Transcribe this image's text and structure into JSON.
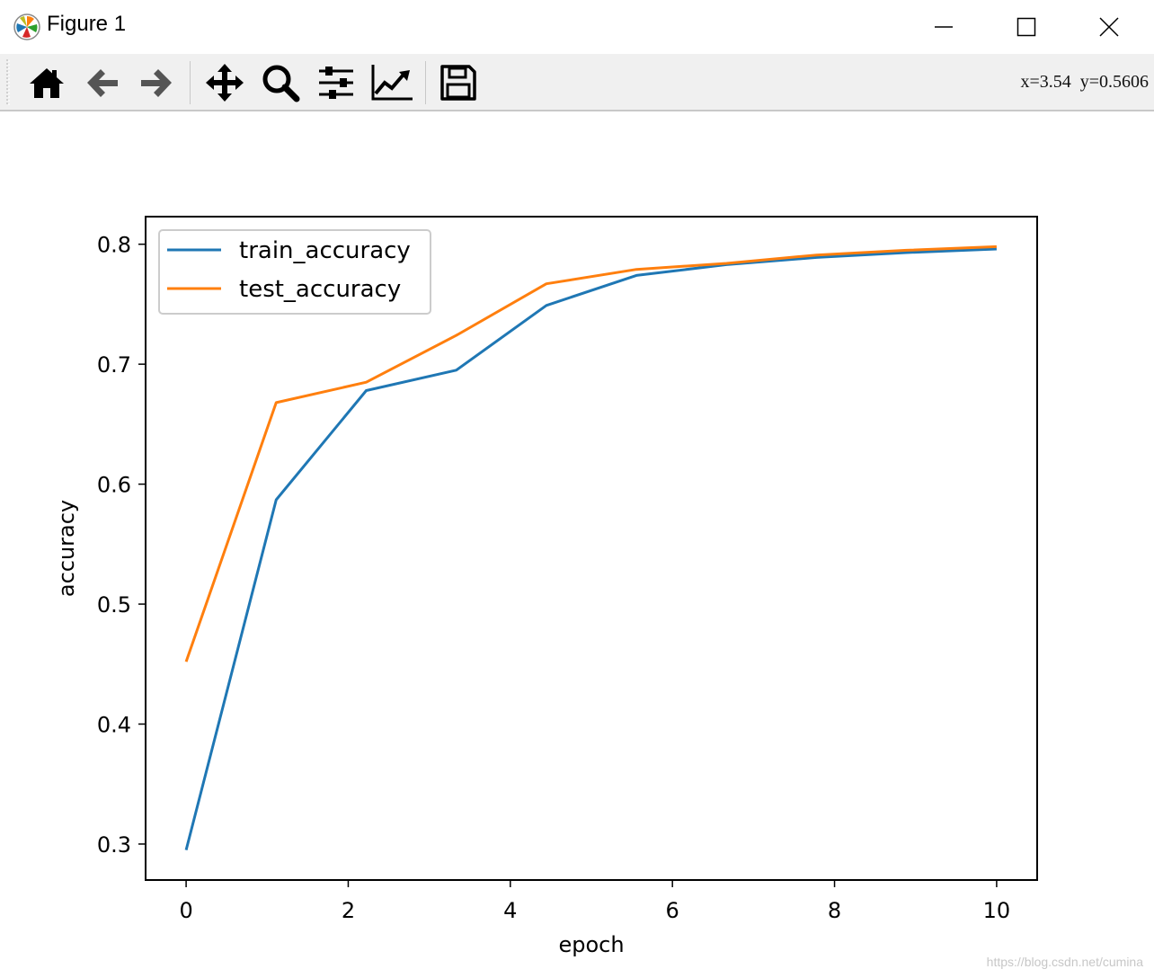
{
  "window": {
    "title": "Figure 1",
    "minimize_icon": "minimize-icon",
    "maximize_icon": "maximize-icon",
    "close_icon": "close-icon"
  },
  "toolbar": {
    "buttons": [
      {
        "name": "home-button",
        "icon": "home-icon"
      },
      {
        "name": "back-button",
        "icon": "arrow-left-icon"
      },
      {
        "name": "forward-button",
        "icon": "arrow-right-icon"
      },
      {
        "name": "pan-button",
        "icon": "move-icon"
      },
      {
        "name": "zoom-button",
        "icon": "search-icon"
      },
      {
        "name": "configure-subplots-button",
        "icon": "sliders-icon"
      },
      {
        "name": "edit-axis-button",
        "icon": "line-chart-icon"
      },
      {
        "name": "save-button",
        "icon": "floppy-disk-icon"
      }
    ],
    "coordinates": "x=3.54  y=0.5606"
  },
  "chart_data": {
    "type": "line",
    "title": "",
    "xlabel": "epoch",
    "ylabel": "accuracy",
    "xlim": [
      -0.5,
      10.5
    ],
    "ylim": [
      0.27,
      0.823
    ],
    "xticks": [
      0,
      2,
      4,
      6,
      8,
      10
    ],
    "yticks": [
      0.3,
      0.4,
      0.5,
      0.6,
      0.7,
      0.8
    ],
    "x": [
      0,
      1.111,
      2.222,
      3.333,
      4.444,
      5.556,
      6.667,
      7.778,
      8.889,
      10
    ],
    "series": [
      {
        "name": "train_accuracy",
        "color": "#1f77b4",
        "values": [
          0.295,
          0.587,
          0.678,
          0.695,
          0.749,
          0.774,
          0.783,
          0.789,
          0.793,
          0.796
        ]
      },
      {
        "name": "test_accuracy",
        "color": "#ff7f0e",
        "values": [
          0.452,
          0.668,
          0.685,
          0.724,
          0.767,
          0.779,
          0.784,
          0.791,
          0.795,
          0.798
        ]
      }
    ],
    "legend_position": "top-left",
    "grid": false
  },
  "watermark": "https://blog.csdn.net/cumina"
}
